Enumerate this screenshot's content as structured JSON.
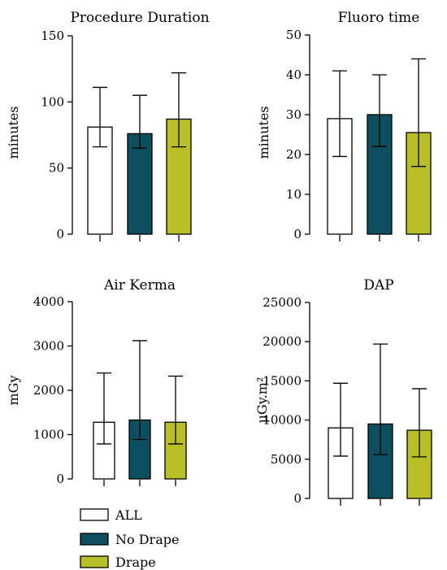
{
  "legend": [
    {
      "label": "ALL",
      "color": "#ffffff"
    },
    {
      "label": "No Drape",
      "color": "#0d4f5e"
    },
    {
      "label": "Drape",
      "color": "#b8bf27"
    }
  ],
  "chart_data": [
    {
      "type": "bar",
      "title": "Procedure Duration",
      "ylabel": "minutes",
      "categories": [
        "ALL",
        "No Drape",
        "Drape"
      ],
      "values": [
        81,
        76,
        87
      ],
      "error_upper": [
        111,
        105,
        122
      ],
      "error_lower": [
        66,
        65,
        66
      ],
      "ylim": [
        0,
        150
      ],
      "yticks": [
        0,
        50,
        100,
        150
      ],
      "ytick_labels": [
        "0",
        "50",
        "100",
        "150"
      ],
      "colors": [
        "#ffffff",
        "#0d4f5e",
        "#b8bf27"
      ]
    },
    {
      "type": "bar",
      "title": "Fluoro time",
      "ylabel": "minutes",
      "categories": [
        "ALL",
        "No Drape",
        "Drape"
      ],
      "values": [
        29,
        30,
        25.5
      ],
      "error_upper": [
        41,
        40,
        44
      ],
      "error_lower": [
        19.5,
        22,
        17
      ],
      "ylim": [
        0,
        50
      ],
      "yticks": [
        0,
        10,
        20,
        30,
        40,
        50
      ],
      "ytick_labels": [
        "0",
        "10",
        "20",
        "30",
        "40",
        "50"
      ],
      "colors": [
        "#ffffff",
        "#0d4f5e",
        "#b8bf27"
      ]
    },
    {
      "type": "bar",
      "title": "Air Kerma",
      "ylabel": "mGy",
      "categories": [
        "ALL",
        "No Drape",
        "Drape"
      ],
      "values": [
        1280,
        1330,
        1280
      ],
      "error_upper": [
        2390,
        3120,
        2320
      ],
      "error_lower": [
        790,
        890,
        790
      ],
      "ylim": [
        0,
        4000
      ],
      "yticks": [
        0,
        1000,
        2000,
        3000,
        4000
      ],
      "ytick_labels": [
        "0",
        "1000",
        "2000",
        "3000",
        "4000"
      ],
      "colors": [
        "#ffffff",
        "#0d4f5e",
        "#b8bf27"
      ]
    },
    {
      "type": "bar",
      "title": "DAP",
      "ylabel": "μGy.m²",
      "categories": [
        "ALL",
        "No Drape",
        "Drape"
      ],
      "values": [
        9000,
        9500,
        8700
      ],
      "error_upper": [
        14700,
        19700,
        14000
      ],
      "error_lower": [
        5400,
        5600,
        5300
      ],
      "ylim": [
        0,
        25000
      ],
      "yticks": [
        0,
        5000,
        10000,
        15000,
        20000,
        25000
      ],
      "ytick_labels": [
        "0",
        "5000",
        "10000",
        "15000",
        "20000",
        "25000"
      ],
      "colors": [
        "#ffffff",
        "#0d4f5e",
        "#b8bf27"
      ]
    }
  ]
}
